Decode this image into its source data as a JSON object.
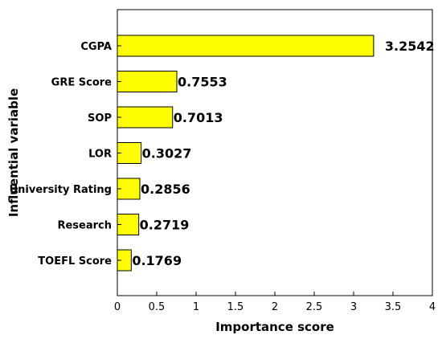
{
  "chart_data": {
    "type": "bar",
    "orientation": "horizontal",
    "categories": [
      "CGPA",
      "GRE Score",
      "SOP",
      "LOR",
      "University Rating",
      "Research",
      "TOEFL Score"
    ],
    "values": [
      3.2542,
      0.7553,
      0.7013,
      0.3027,
      0.2856,
      0.2719,
      0.1769
    ],
    "data_labels": [
      "3.2542",
      "0.7553",
      "0.7013",
      "0.3027",
      "0.2856",
      "0.2719",
      "0.1769"
    ],
    "xlabel": "Importance score",
    "ylabel": "Influential variable",
    "xlim": [
      0,
      4
    ],
    "x_ticks": [
      "0",
      "0.5",
      "1",
      "1.5",
      "2",
      "2.5",
      "3",
      "3.5",
      "4"
    ],
    "grid": false,
    "bar_color": "#ffff00",
    "bar_edge_color": "#000000"
  }
}
